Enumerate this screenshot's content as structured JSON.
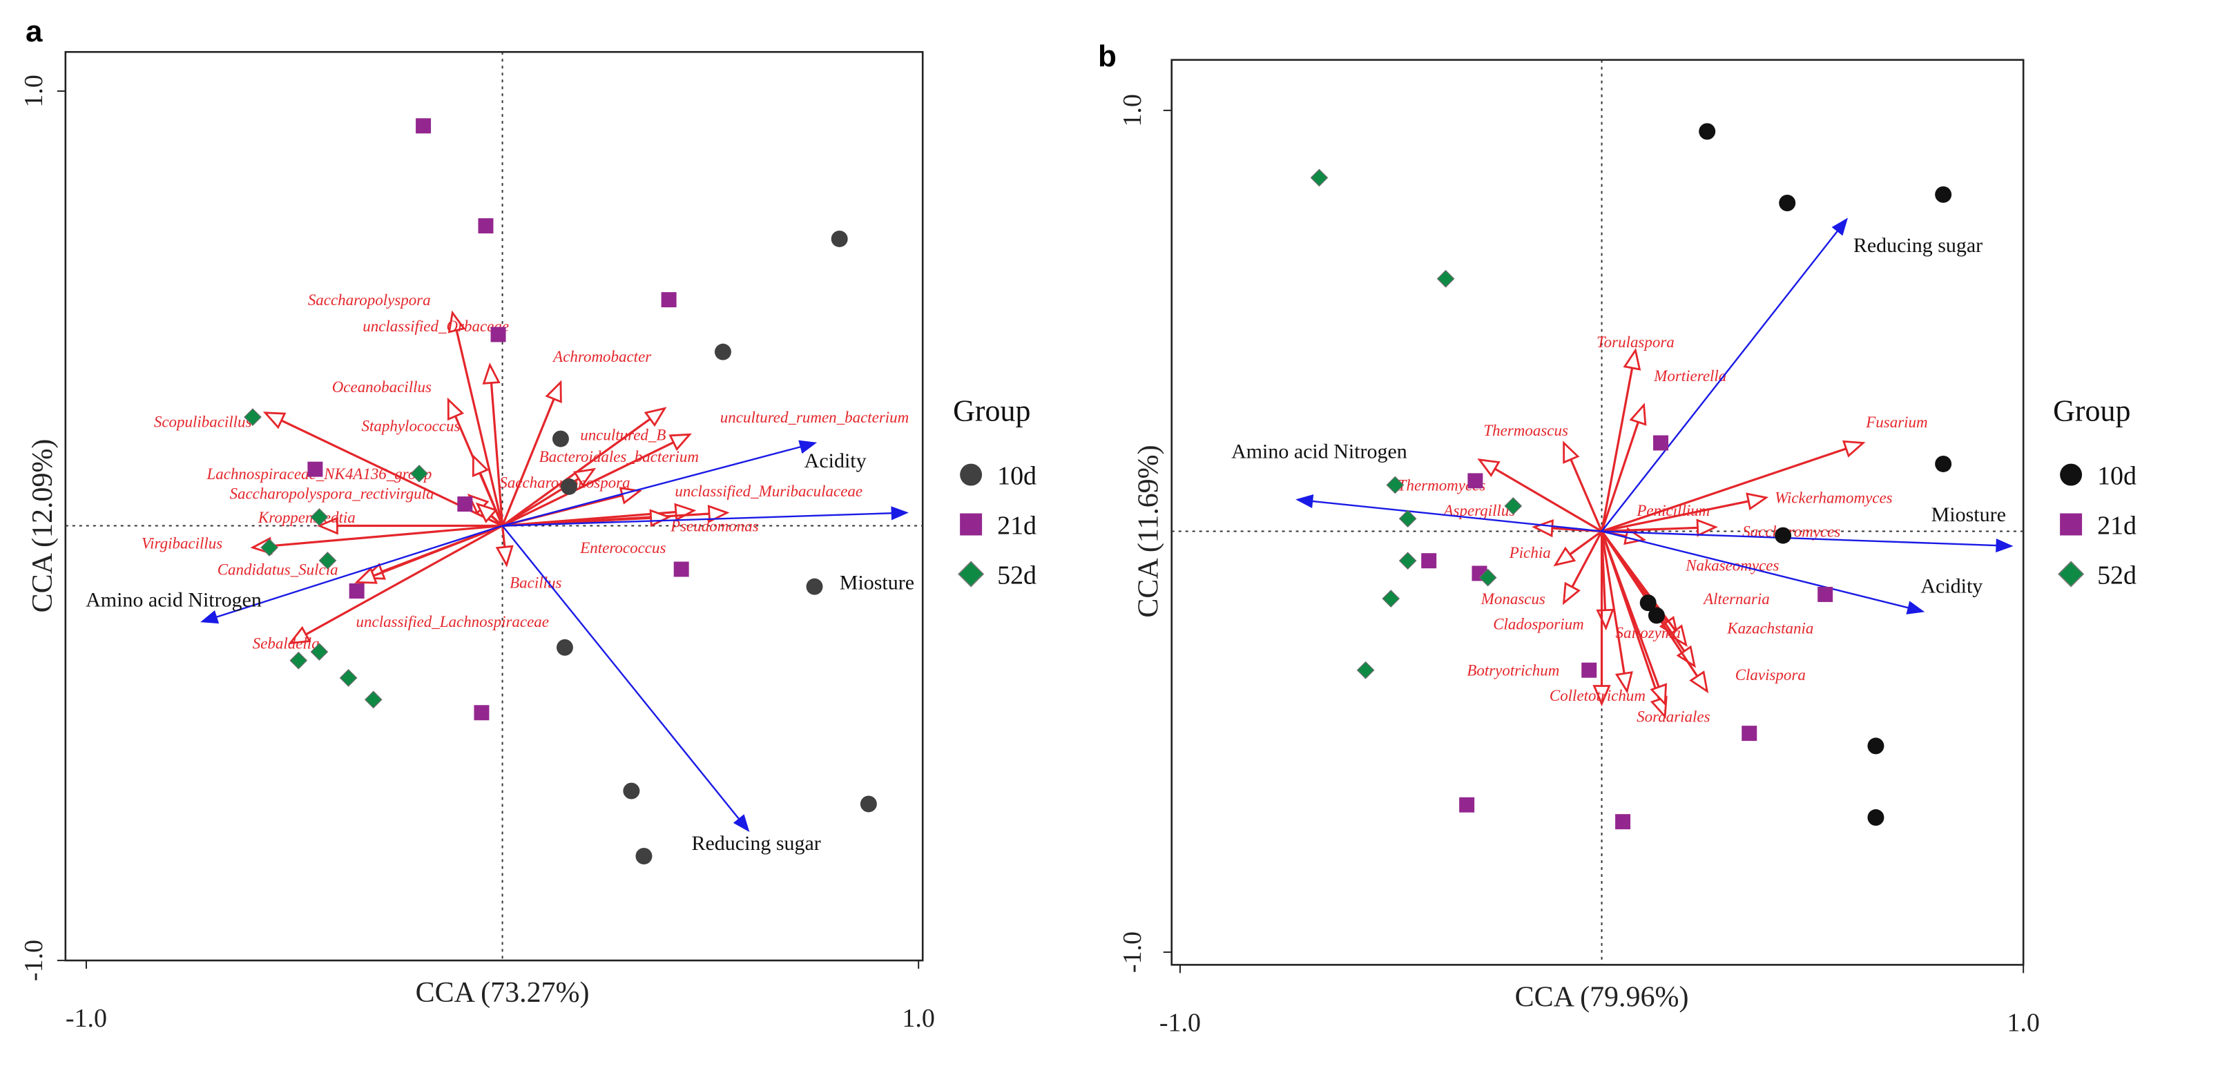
{
  "colors": {
    "10d_a": "#404040",
    "10d_b": "#111111",
    "21d": "#93278f",
    "52d": "#0f8a45",
    "species": "#e4262b",
    "env": "#1a1ae6"
  },
  "chart_data": [
    {
      "type": "scatter",
      "panel": "a",
      "xlabel": "CCA (73.27%)",
      "ylabel": "CCA (12.09%)",
      "xlim": [
        -1.05,
        1.01
      ],
      "ylim": [
        -1.0,
        1.09
      ],
      "xticks": [
        {
          "value": -1,
          "label": "-1.0"
        },
        {
          "value": 1,
          "label": "1.0"
        }
      ],
      "yticks": [
        {
          "value": -1,
          "label": "-1.0"
        },
        {
          "value": 1,
          "label": "1.0"
        }
      ],
      "legend": {
        "title": "Group",
        "placement": "right",
        "entries": [
          "10d",
          "21d",
          "52d"
        ]
      },
      "series": [
        {
          "name": "10d",
          "marker": "circle",
          "points": [
            [
              0.81,
              0.66
            ],
            [
              0.53,
              0.4
            ],
            [
              0.14,
              0.2
            ],
            [
              0.16,
              0.09
            ],
            [
              0.75,
              -0.14
            ],
            [
              0.15,
              -0.28
            ],
            [
              0.31,
              -0.61
            ],
            [
              0.34,
              -0.76
            ],
            [
              0.88,
              -0.64
            ]
          ]
        },
        {
          "name": "21d",
          "marker": "square",
          "points": [
            [
              -0.19,
              0.92
            ],
            [
              -0.04,
              0.69
            ],
            [
              -0.01,
              0.44
            ],
            [
              0.4,
              0.52
            ],
            [
              -0.45,
              0.13
            ],
            [
              -0.09,
              0.05
            ],
            [
              0.43,
              -0.1
            ],
            [
              -0.35,
              -0.15
            ],
            [
              -0.05,
              -0.43
            ]
          ]
        },
        {
          "name": "52d",
          "marker": "diamond",
          "points": [
            [
              -0.6,
              0.25
            ],
            [
              -0.2,
              0.12
            ],
            [
              -0.44,
              0.02
            ],
            [
              -0.56,
              -0.05
            ],
            [
              -0.42,
              -0.08
            ],
            [
              -0.49,
              -0.31
            ],
            [
              -0.44,
              -0.29
            ],
            [
              -0.37,
              -0.35
            ],
            [
              -0.31,
              -0.4
            ]
          ]
        }
      ],
      "env_vectors": [
        {
          "name": "Acidity",
          "x": 0.75,
          "y": 0.19,
          "label_x": 0.8,
          "label_y": 0.15
        },
        {
          "name": "Miosture",
          "x": 0.97,
          "y": 0.03,
          "label_x": 0.9,
          "label_y": -0.13
        },
        {
          "name": "Amino acid Nitrogen",
          "x": -0.72,
          "y": -0.22,
          "label_x": -0.79,
          "label_y": -0.17
        },
        {
          "name": "Reducing sugar",
          "x": 0.59,
          "y": -0.7,
          "label_x": 0.61,
          "label_y": -0.73
        }
      ],
      "species_vectors": [
        {
          "name": "Saccharopolyspora",
          "x": -0.12,
          "y": 0.49,
          "label_x": -0.32,
          "label_y": 0.52
        },
        {
          "name": "unclassified_Orbaceae",
          "x": -0.03,
          "y": 0.37,
          "label_x": -0.16,
          "label_y": 0.46
        },
        {
          "name": "Oceanobacillus",
          "x": -0.13,
          "y": 0.29,
          "label_x": -0.29,
          "label_y": 0.32
        },
        {
          "name": "Staphylococcus",
          "x": -0.07,
          "y": 0.16,
          "label_x": -0.22,
          "label_y": 0.23
        },
        {
          "name": "Scopulibacillus",
          "x": -0.57,
          "y": 0.26,
          "label_x": -0.72,
          "label_y": 0.24
        },
        {
          "name": "Lachnospiraceae_NK4A136_group",
          "x": -0.08,
          "y": 0.07,
          "label_x": -0.44,
          "label_y": 0.12
        },
        {
          "name": "Saccharopolyspora_rectivirgula",
          "x": -0.06,
          "y": 0.05,
          "label_x": -0.41,
          "label_y": 0.075
        },
        {
          "name": "Kroppenstedtia",
          "x": -0.44,
          "y": 0.0,
          "label_x": -0.47,
          "label_y": 0.02
        },
        {
          "name": "Virgibacillus",
          "x": -0.6,
          "y": -0.05,
          "label_x": -0.77,
          "label_y": -0.04
        },
        {
          "name": "Candidatus_Sulcia",
          "x": -0.33,
          "y": -0.12,
          "label_x": -0.54,
          "label_y": -0.1
        },
        {
          "name": "Sebaldella",
          "x": -0.51,
          "y": -0.27,
          "label_x": -0.52,
          "label_y": -0.27
        },
        {
          "name": "unclassified_Lachnospiraceae",
          "x": -0.35,
          "y": -0.13,
          "label_x": -0.12,
          "label_y": -0.22
        },
        {
          "name": "Achromobacter",
          "x": 0.14,
          "y": 0.33,
          "label_x": 0.24,
          "label_y": 0.39
        },
        {
          "name": "uncultured_B",
          "x": 0.39,
          "y": 0.27,
          "label_x": 0.29,
          "label_y": 0.21
        },
        {
          "name": "Bacteroidales_bacterium",
          "x": 0.22,
          "y": 0.13,
          "label_x": 0.28,
          "label_y": 0.16
        },
        {
          "name": "Saccharomonospora",
          "x": 0.33,
          "y": 0.08,
          "label_x": 0.15,
          "label_y": 0.1
        },
        {
          "name": "uncultured_rumen_bacterium",
          "x": 0.45,
          "y": 0.21,
          "label_x": 0.75,
          "label_y": 0.25
        },
        {
          "name": "unclassified_Muribaculaceae",
          "x": 0.46,
          "y": 0.035,
          "label_x": 0.64,
          "label_y": 0.08
        },
        {
          "name": "Pseudomonas",
          "x": 0.54,
          "y": 0.03,
          "label_x": 0.51,
          "label_y": 0.0
        },
        {
          "name": "Enterococcus",
          "x": 0.4,
          "y": 0.02,
          "label_x": 0.29,
          "label_y": -0.05
        },
        {
          "name": "Bacillus",
          "x": 0.01,
          "y": -0.09,
          "label_x": 0.08,
          "label_y": -0.13
        }
      ]
    },
    {
      "type": "scatter",
      "panel": "b",
      "xlabel": "CCA (79.96%)",
      "ylabel": "CCA (11.69%)",
      "xlim": [
        -1.02,
        1.0
      ],
      "ylim": [
        -1.03,
        1.12
      ],
      "xticks": [
        {
          "value": -1,
          "label": "-1.0"
        },
        {
          "value": 1,
          "label": "1.0"
        }
      ],
      "yticks": [
        {
          "value": -1,
          "label": "-1.0"
        },
        {
          "value": 1,
          "label": "1.0"
        }
      ],
      "legend": {
        "title": "Group",
        "placement": "right",
        "entries": [
          "10d",
          "21d",
          "52d"
        ]
      },
      "series": [
        {
          "name": "10d",
          "marker": "circle",
          "points": [
            [
              0.25,
              0.95
            ],
            [
              0.44,
              0.78
            ],
            [
              0.81,
              0.8
            ],
            [
              0.81,
              0.16
            ],
            [
              0.43,
              -0.01
            ],
            [
              0.11,
              -0.17
            ],
            [
              0.13,
              -0.2
            ],
            [
              0.65,
              -0.51
            ],
            [
              0.65,
              -0.68
            ]
          ]
        },
        {
          "name": "21d",
          "marker": "square",
          "points": [
            [
              0.14,
              0.21
            ],
            [
              -0.3,
              0.12
            ],
            [
              -0.41,
              -0.07
            ],
            [
              -0.29,
              -0.1
            ],
            [
              0.53,
              -0.15
            ],
            [
              -0.03,
              -0.33
            ],
            [
              0.35,
              -0.48
            ],
            [
              -0.32,
              -0.65
            ],
            [
              0.05,
              -0.69
            ]
          ]
        },
        {
          "name": "52d",
          "marker": "diamond",
          "points": [
            [
              -0.67,
              0.84
            ],
            [
              -0.37,
              0.6
            ],
            [
              -0.49,
              0.11
            ],
            [
              -0.21,
              0.06
            ],
            [
              -0.46,
              0.03
            ],
            [
              -0.46,
              -0.07
            ],
            [
              -0.27,
              -0.11
            ],
            [
              -0.5,
              -0.16
            ],
            [
              -0.56,
              -0.33
            ]
          ]
        }
      ],
      "env_vectors": [
        {
          "name": "Reducing sugar",
          "x": 0.58,
          "y": 0.74,
          "label_x": 0.75,
          "label_y": 0.68
        },
        {
          "name": "Amino acid Nitrogen",
          "x": -0.72,
          "y": 0.075,
          "label_x": -0.67,
          "label_y": 0.19
        },
        {
          "name": "Miosture",
          "x": 0.97,
          "y": -0.035,
          "label_x": 0.87,
          "label_y": 0.04
        },
        {
          "name": "Acidity",
          "x": 0.76,
          "y": -0.19,
          "label_x": 0.83,
          "label_y": -0.13
        }
      ],
      "species_vectors": [
        {
          "name": "Torulaspora",
          "x": 0.08,
          "y": 0.43,
          "label_x": 0.08,
          "label_y": 0.45
        },
        {
          "name": "Mortierella",
          "x": 0.1,
          "y": 0.3,
          "label_x": 0.21,
          "label_y": 0.37
        },
        {
          "name": "Thermoascus",
          "x": -0.09,
          "y": 0.21,
          "label_x": -0.18,
          "label_y": 0.24
        },
        {
          "name": "Thermomyces",
          "x": -0.29,
          "y": 0.17,
          "label_x": -0.38,
          "label_y": 0.11
        },
        {
          "name": "Aspergillus",
          "x": -0.16,
          "y": 0.01,
          "label_x": -0.29,
          "label_y": 0.05
        },
        {
          "name": "Fusarium",
          "x": 0.62,
          "y": 0.21,
          "label_x": 0.7,
          "label_y": 0.26
        },
        {
          "name": "Wickerhamomyces",
          "x": 0.39,
          "y": 0.08,
          "label_x": 0.55,
          "label_y": 0.08
        },
        {
          "name": "Penicillium",
          "x": 0.1,
          "y": -0.02,
          "label_x": 0.17,
          "label_y": 0.05
        },
        {
          "name": "Saccharomyces",
          "x": 0.27,
          "y": 0.01,
          "label_x": 0.45,
          "label_y": 0.0
        },
        {
          "name": "Nakaseomyces",
          "x": 0.18,
          "y": -0.25,
          "label_x": 0.31,
          "label_y": -0.08
        },
        {
          "name": "Alternaria",
          "x": 0.2,
          "y": -0.27,
          "label_x": 0.32,
          "label_y": -0.16
        },
        {
          "name": "Kazachstania",
          "x": 0.22,
          "y": -0.32,
          "label_x": 0.4,
          "label_y": -0.23
        },
        {
          "name": "Clavispora",
          "x": 0.25,
          "y": -0.38,
          "label_x": 0.4,
          "label_y": -0.34
        },
        {
          "name": "Pichia",
          "x": -0.11,
          "y": -0.08,
          "label_x": -0.17,
          "label_y": -0.05
        },
        {
          "name": "Monascus",
          "x": -0.09,
          "y": -0.17,
          "label_x": -0.21,
          "label_y": -0.16
        },
        {
          "name": "Cladosporium",
          "x": 0.01,
          "y": -0.23,
          "label_x": -0.15,
          "label_y": -0.22
        },
        {
          "name": "Saitozyma",
          "x": 0.06,
          "y": -0.38,
          "label_x": 0.11,
          "label_y": -0.24
        },
        {
          "name": "Botryotrichum",
          "x": 0.0,
          "y": -0.41,
          "label_x": -0.21,
          "label_y": -0.33
        },
        {
          "name": "Colletotrichum",
          "x": 0.15,
          "y": -0.44,
          "label_x": -0.01,
          "label_y": -0.39
        },
        {
          "name": "Sordariales",
          "x": 0.15,
          "y": -0.41,
          "label_x": 0.17,
          "label_y": -0.44
        }
      ]
    }
  ]
}
